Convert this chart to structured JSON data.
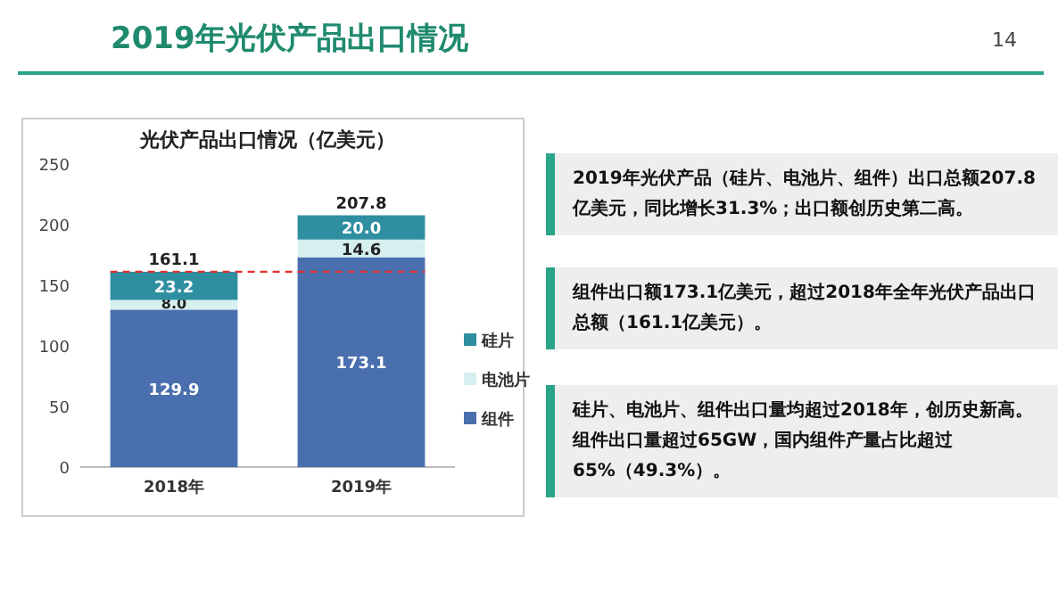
{
  "chart_data": {
    "type": "bar",
    "stacked": true,
    "title": "光伏产品出口情况（亿美元）",
    "categories": [
      "2018年",
      "2019年"
    ],
    "series": [
      {
        "name": "组件",
        "color": "#4a6fae",
        "values": [
          129.9,
          173.1
        ],
        "value_labels": [
          "129.9",
          "173.1"
        ]
      },
      {
        "name": "电池片",
        "color": "#d6efef",
        "values": [
          8.0,
          14.6
        ],
        "value_labels": [
          "8.0",
          "14.6"
        ]
      },
      {
        "name": "硅片",
        "color": "#2e8fa0",
        "values": [
          23.2,
          20.0
        ],
        "value_labels": [
          "23.2",
          "20.0"
        ]
      }
    ],
    "ylim": [
      0,
      250
    ],
    "yticks": [
      0,
      50,
      100,
      150,
      200,
      250
    ],
    "totals": [
      "161.1",
      "207.8"
    ],
    "ref_lines": [
      {
        "axis": "y",
        "value": 161.1,
        "color": "#e03030",
        "line_style": "dashed"
      }
    ],
    "legend": "right",
    "annotations": [
      "2019年光伏产品出口情况",
      "14",
      "2019年光伏产品（硅片、电池片、组件）出口总额207.8亿美元，同比增长31.3%；出口额创历史第二高。",
      "组件出口额173.1亿美元，超过2018年全年光伏产品出口总额（161.1亿美元）。",
      "硅片、电池片、组件出口量均超过2018年，创历史新高。组件出口量超过65GW，国内组件产量占比超过65%（49.3%）。"
    ]
  }
}
